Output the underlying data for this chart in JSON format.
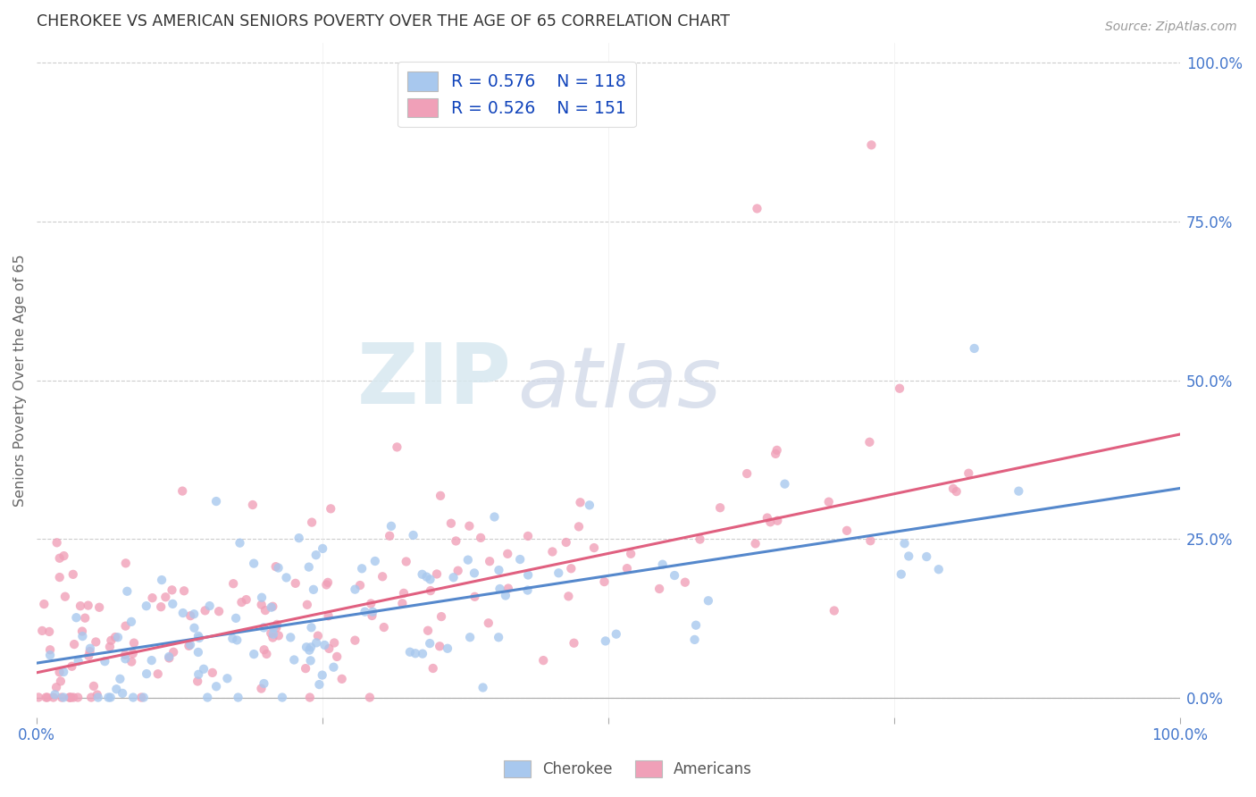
{
  "title": "CHEROKEE VS AMERICAN SENIORS POVERTY OVER THE AGE OF 65 CORRELATION CHART",
  "source": "Source: ZipAtlas.com",
  "ylabel": "Seniors Poverty Over the Age of 65",
  "watermark_zip": "ZIP",
  "watermark_atlas": "atlas",
  "cherokee_R": 0.576,
  "cherokee_N": 118,
  "americans_R": 0.526,
  "americans_N": 151,
  "cherokee_color": "#A8C8EE",
  "cherokee_line_color": "#5588CC",
  "americans_color": "#F0A0B8",
  "americans_line_color": "#E06080",
  "background_color": "#ffffff",
  "grid_color": "#cccccc",
  "title_color": "#333333",
  "axis_label_color": "#666666",
  "right_tick_color": "#4477CC",
  "legend_label_color": "#1144BB",
  "source_color": "#999999"
}
